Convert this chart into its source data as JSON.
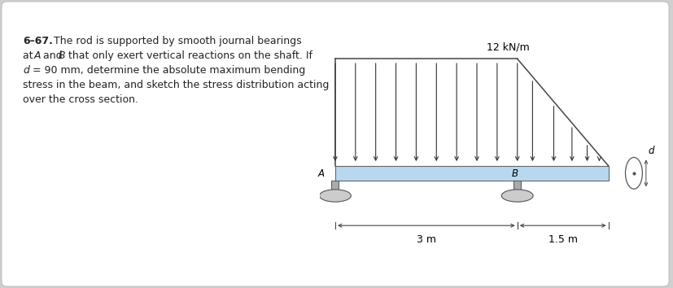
{
  "page_color": "#ffffff",
  "outer_bg": "#d0d0d0",
  "text_bold_part": "6–67.",
  "text_normal_part": "  The rod is supported by smooth journal bearings\nat ",
  "text_line2": "A",
  "text_normal2": " and ",
  "text_line2b": "B",
  "text_normal2b": " that only exert vertical reactions on the shaft. If",
  "text_line3a": "d",
  "text_normal3": " = 90 mm, determine the absolute maximum bending",
  "text_line4": "stress in the beam, and sketch the stress distribution acting",
  "text_line5": "over the cross section.",
  "text_fontsize": 9.0,
  "load_label": "12 kN/m",
  "dim_label_3m": "3 m",
  "dim_label_15m": "1.5 m",
  "label_A": "A",
  "label_B": "B",
  "label_d": "d",
  "beam_color": "#b8d8f0",
  "beam_edge_color": "#666666",
  "support_color": "#888888",
  "support_face": "#cccccc",
  "arrow_color": "#333333",
  "dim_color": "#333333"
}
